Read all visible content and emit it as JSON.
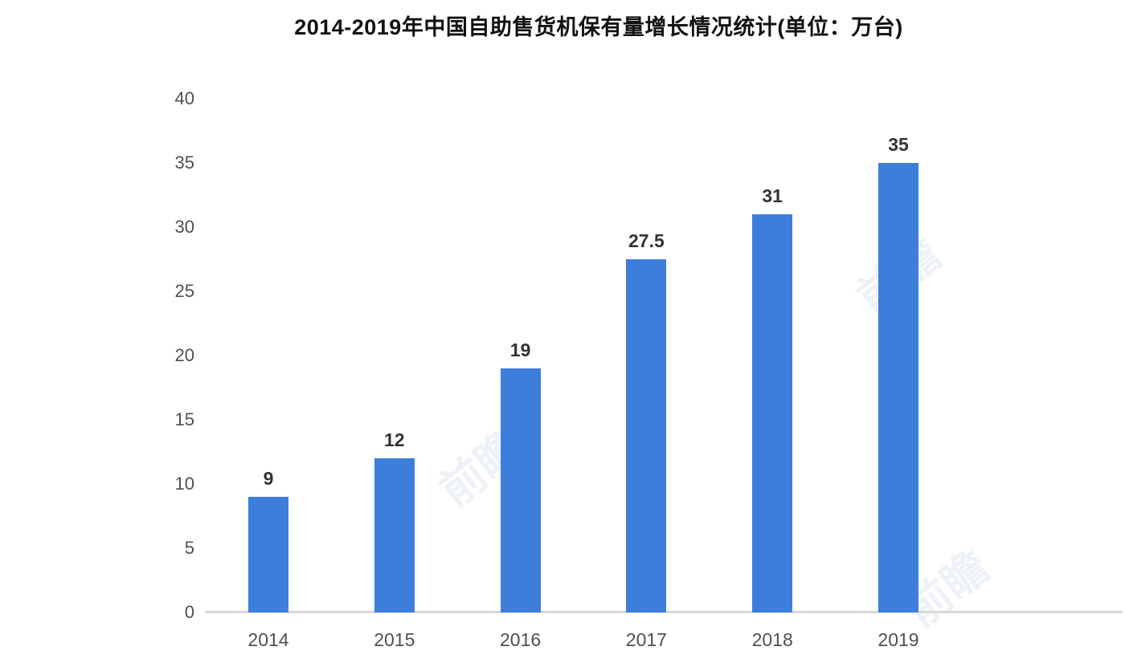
{
  "chart_data": {
    "type": "bar",
    "title": "2014-2019年中国自助售货机保有量增长情况统计(单位：万台)",
    "categories": [
      "2014",
      "2015",
      "2016",
      "2017",
      "2018",
      "2019"
    ],
    "values": [
      9,
      12,
      19,
      27.5,
      31,
      35
    ],
    "value_labels": [
      "9",
      "12",
      "19",
      "27.5",
      "31",
      "35"
    ],
    "xlabel": "",
    "ylabel": "",
    "ylim": [
      0,
      40
    ],
    "ytick_step": 5,
    "ytick_labels": [
      "0",
      "5",
      "10",
      "15",
      "20",
      "25",
      "30",
      "35",
      "40"
    ],
    "grid": false,
    "legend": "none",
    "bar_color": "#3d7edb",
    "axis_line_color": "#d8d8d8",
    "tick_label_color": "#4f4f4f",
    "value_label_color": "#333333",
    "title_color": "#111111"
  },
  "watermark": {
    "text": "前瞻"
  }
}
